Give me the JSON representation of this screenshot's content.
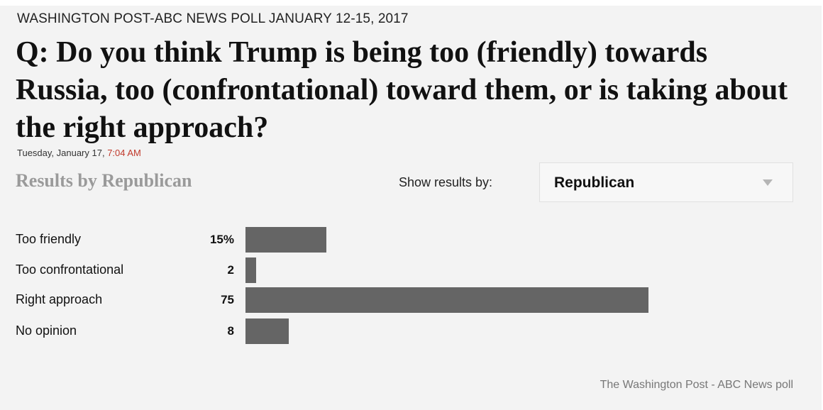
{
  "header": {
    "kicker": "WASHINGTON POST-ABC NEWS POLL JANUARY 12-15, 2017",
    "question": "Q: Do you think Trump is being too (friendly) towards Russia, too (confrontational) toward them, or is taking about the right approach?",
    "date_text": "Tuesday, January 17, ",
    "time_text": "7:04 AM"
  },
  "controls": {
    "results_title": "Results by Republican",
    "show_label": "Show results by:",
    "selected_group": "Republican"
  },
  "chart_data": {
    "type": "bar",
    "orientation": "horizontal",
    "categories": [
      "Too friendly",
      "Too confrontational",
      "Right approach",
      "No opinion"
    ],
    "values": [
      15,
      2,
      75,
      8
    ],
    "value_labels": [
      "15%",
      "2",
      "75",
      "8"
    ],
    "unit": "%",
    "xlim": [
      0,
      100
    ],
    "grid": false
  },
  "footer": {
    "source": "The Washington Post - ABC News poll"
  },
  "colors": {
    "bar": "#656565",
    "time": "#c0392b",
    "muted_title": "#9a9a9a"
  }
}
